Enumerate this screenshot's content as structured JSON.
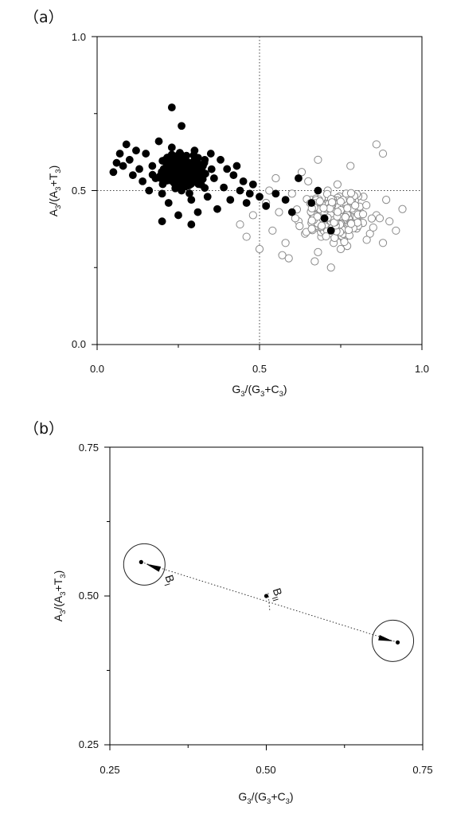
{
  "chart_data": [
    {
      "type": "scatter",
      "panel_label": "（a）",
      "xlabel": {
        "main": "G",
        "sub1": "3",
        "mid": "/(G",
        "sub2": "3",
        "mid2": "+C",
        "sub3": "3",
        "end": ")"
      },
      "ylabel": {
        "main": "A",
        "sub1": "3",
        "mid": "/(A",
        "sub2": "3",
        "mid2": "+T",
        "sub3": "3",
        "end": ")"
      },
      "xlim": [
        0,
        1
      ],
      "ylim": [
        0,
        1
      ],
      "xticks": [
        "0.0",
        "0.5",
        "1.0"
      ],
      "yticks": [
        "0.0",
        "0.5",
        "1.0"
      ],
      "reference_lines": {
        "x": 0.5,
        "y": 0.5,
        "style": "dotted"
      },
      "grid": false,
      "series": [
        {
          "marker": "filled-circle",
          "color": "#000000",
          "cluster_center": [
            0.26,
            0.56
          ],
          "x": [
            0.05,
            0.06,
            0.07,
            0.08,
            0.09,
            0.1,
            0.11,
            0.12,
            0.13,
            0.14,
            0.15,
            0.16,
            0.17,
            0.18,
            0.19,
            0.2,
            0.21,
            0.22,
            0.23,
            0.24,
            0.25,
            0.26,
            0.27,
            0.28,
            0.29,
            0.3,
            0.31,
            0.32,
            0.33,
            0.34,
            0.35,
            0.36,
            0.37,
            0.38,
            0.39,
            0.4,
            0.41,
            0.42,
            0.43,
            0.44,
            0.45,
            0.46,
            0.47,
            0.48,
            0.5,
            0.52,
            0.55,
            0.58,
            0.6,
            0.62,
            0.66,
            0.68,
            0.7,
            0.72,
            0.23,
            0.26,
            0.2,
            0.25,
            0.29,
            0.31
          ],
          "y": [
            0.56,
            0.59,
            0.62,
            0.58,
            0.65,
            0.6,
            0.55,
            0.63,
            0.57,
            0.53,
            0.62,
            0.5,
            0.58,
            0.54,
            0.66,
            0.49,
            0.6,
            0.46,
            0.64,
            0.52,
            0.58,
            0.5,
            0.61,
            0.55,
            0.47,
            0.63,
            0.56,
            0.52,
            0.59,
            0.48,
            0.62,
            0.54,
            0.44,
            0.6,
            0.51,
            0.57,
            0.47,
            0.55,
            0.58,
            0.5,
            0.53,
            0.46,
            0.49,
            0.52,
            0.48,
            0.45,
            0.49,
            0.47,
            0.43,
            0.54,
            0.46,
            0.5,
            0.41,
            0.37,
            0.77,
            0.71,
            0.4,
            0.42,
            0.39,
            0.43
          ]
        },
        {
          "marker": "open-circle",
          "color": "#888888",
          "cluster_center": [
            0.74,
            0.42
          ],
          "x": [
            0.44,
            0.46,
            0.48,
            0.5,
            0.52,
            0.54,
            0.56,
            0.58,
            0.6,
            0.62,
            0.64,
            0.66,
            0.68,
            0.7,
            0.72,
            0.74,
            0.76,
            0.78,
            0.8,
            0.82,
            0.84,
            0.86,
            0.88,
            0.9,
            0.92,
            0.94,
            0.53,
            0.57,
            0.61,
            0.65,
            0.69,
            0.73,
            0.77,
            0.81,
            0.85,
            0.89,
            0.63,
            0.67,
            0.71,
            0.75,
            0.79,
            0.83,
            0.87,
            0.86,
            0.88,
            0.78,
            0.72,
            0.68,
            0.59,
            0.55
          ],
          "y": [
            0.39,
            0.35,
            0.42,
            0.31,
            0.46,
            0.37,
            0.43,
            0.33,
            0.49,
            0.4,
            0.36,
            0.47,
            0.3,
            0.44,
            0.38,
            0.52,
            0.34,
            0.45,
            0.39,
            0.48,
            0.36,
            0.42,
            0.33,
            0.4,
            0.37,
            0.44,
            0.5,
            0.29,
            0.41,
            0.53,
            0.35,
            0.46,
            0.32,
            0.43,
            0.38,
            0.47,
            0.56,
            0.27,
            0.5,
            0.31,
            0.45,
            0.34,
            0.41,
            0.65,
            0.62,
            0.58,
            0.25,
            0.6,
            0.28,
            0.54
          ]
        }
      ]
    },
    {
      "type": "scatter",
      "panel_label": "（b）",
      "xlabel": {
        "main": "G",
        "sub1": "3",
        "mid": "/(G",
        "sub2": "3",
        "mid2": "+C",
        "sub3": "3",
        "end": ")"
      },
      "ylabel": {
        "main": "A",
        "sub1": "3",
        "mid": "/(A",
        "sub2": "3",
        "mid2": "+T",
        "sub3": "3",
        "end": ")"
      },
      "xlim": [
        0.25,
        0.75
      ],
      "ylim": [
        0.25,
        0.75
      ],
      "xticks": [
        "0.25",
        "0.50",
        "0.75"
      ],
      "yticks": [
        "0.25",
        "0.50",
        "0.75"
      ],
      "grid": false,
      "points": [
        {
          "label": "B",
          "sub": "I",
          "x": 0.3,
          "y": 0.557,
          "circled": true,
          "arrow_to": [
            0.33,
            0.545
          ]
        },
        {
          "label": "B",
          "sub": "II",
          "x": 0.5,
          "y": 0.5,
          "circled": false
        },
        {
          "label": "",
          "sub": "",
          "x": 0.71,
          "y": 0.422,
          "circled": true,
          "arrow_to": [
            0.68,
            0.43
          ]
        }
      ],
      "connector": {
        "from": [
          0.3,
          0.557
        ],
        "to": [
          0.71,
          0.422
        ],
        "style": "dotted"
      },
      "midpoint_tick": {
        "x": 0.503,
        "y0": 0.475,
        "y1": 0.505
      }
    }
  ]
}
